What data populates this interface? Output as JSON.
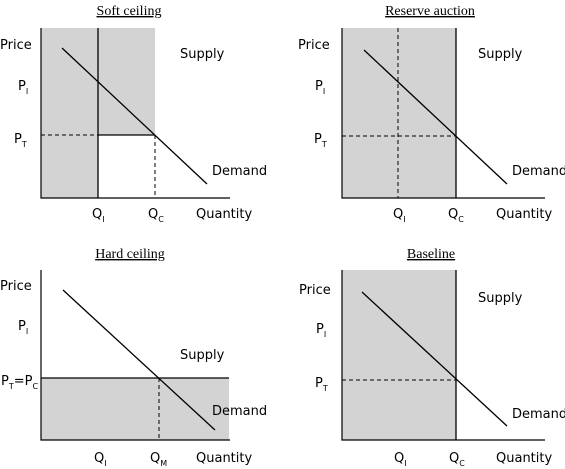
{
  "panels": {
    "soft": {
      "title": "Soft ceiling",
      "price": "Price",
      "quantity": "Quantity",
      "supply": "Supply",
      "demand": "Demand",
      "p1": "P",
      "p1_sub": "I",
      "p2": "P",
      "p2_sub": "T",
      "q1": "Q",
      "q1_sub": "I",
      "q2": "Q",
      "q2_sub": "C"
    },
    "reserve": {
      "title": "Reserve auction",
      "price": "Price",
      "quantity": "Quantity",
      "supply": "Supply",
      "demand": "Demand",
      "p1": "P",
      "p1_sub": "I",
      "p2": "P",
      "p2_sub": "T",
      "q1": "Q",
      "q1_sub": "I",
      "q2": "Q",
      "q2_sub": "C"
    },
    "hard": {
      "title": "Hard ceiling",
      "price": "Price",
      "quantity": "Quantity",
      "supply": "Supply",
      "demand": "Demand",
      "p1": "P",
      "p1_sub": "I",
      "p2a": "P",
      "p2a_sub": "T",
      "p2_eq": "=P",
      "p2b_sub": "C",
      "q1": "Q",
      "q1_sub": "I",
      "q2": "Q",
      "q2_sub": "M"
    },
    "baseline": {
      "title": "Baseline",
      "price": "Price",
      "quantity": "Quantity",
      "supply": "Supply",
      "demand": "Demand",
      "p1": "P",
      "p1_sub": "I",
      "p2": "P",
      "p2_sub": "T",
      "q1": "Q",
      "q1_sub": "I",
      "q2": "Q",
      "q2_sub": "C"
    }
  }
}
